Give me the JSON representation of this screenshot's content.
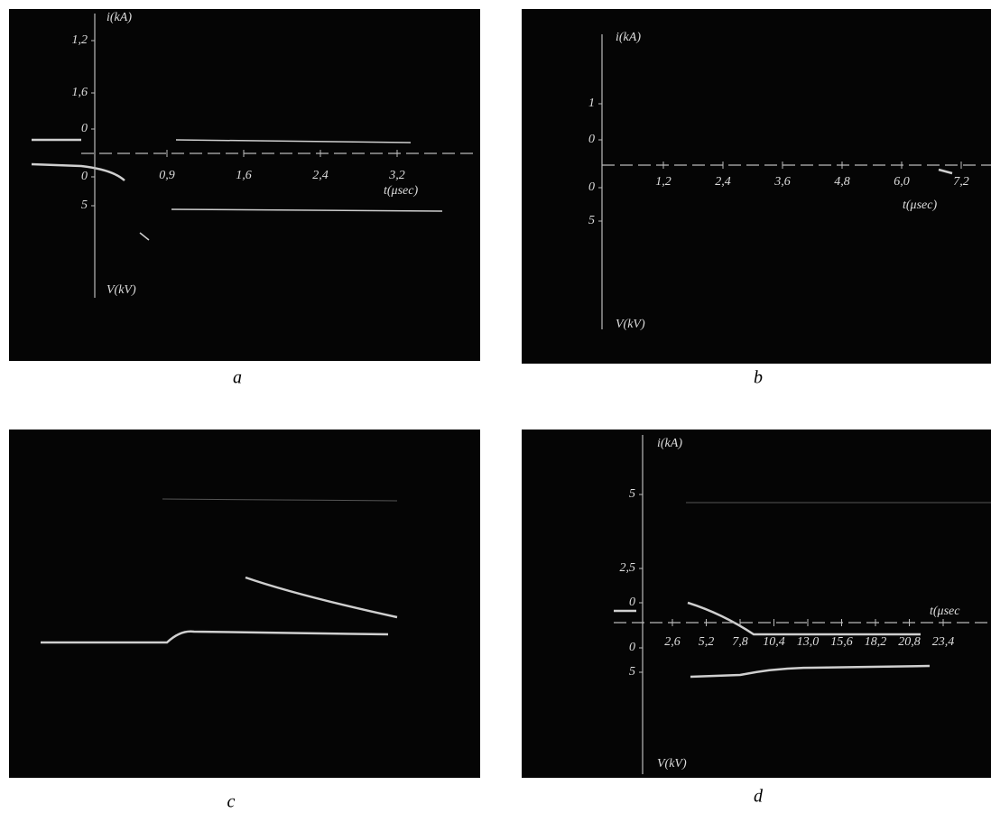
{
  "panels": [
    {
      "label": "a",
      "axis_labels": {
        "i": "i(kA)",
        "t": "t(μsec)",
        "v": "V(kV)"
      },
      "y_labels": [
        "1,2",
        "1,6",
        "0",
        "0",
        "5"
      ],
      "x_labels": [
        "0,9",
        "1,6",
        "2,4",
        "3,2"
      ]
    },
    {
      "label": "b",
      "axis_labels": {
        "i": "i(kA)",
        "t": "t(μsec)",
        "v": "V(kV)"
      },
      "y_labels": [
        "1",
        "0",
        "0",
        "5"
      ],
      "x_labels": [
        "1,2",
        "2,4",
        "3,6",
        "4,8",
        "6,0",
        "7,2"
      ]
    },
    {
      "label": "c"
    },
    {
      "label": "d",
      "axis_labels": {
        "i": "i(kA)",
        "t": "t(μsec",
        "v": "V(kV)"
      },
      "y_labels": [
        "5",
        "2,5",
        "0",
        "0",
        "5"
      ],
      "x_labels": [
        "2,6",
        "5,2",
        "7,8",
        "10,4",
        "13,0",
        "15,6",
        "18,2",
        "20,8",
        "23,4"
      ]
    }
  ]
}
